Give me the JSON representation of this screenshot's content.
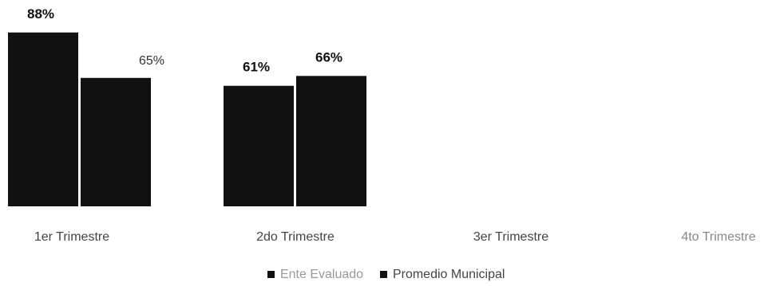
{
  "chart_data": {
    "type": "bar",
    "categories": [
      "1er Trimestre",
      "2do Trimestre",
      "3er Trimestre",
      "4to Trimestre"
    ],
    "series": [
      {
        "name": "Ente Evaluado",
        "values": [
          88,
          61,
          null,
          null
        ],
        "labels": [
          "88%",
          "61%",
          "",
          ""
        ]
      },
      {
        "name": "Promedio Municipal",
        "values": [
          65,
          66,
          null,
          null
        ],
        "labels": [
          "65%",
          "66%",
          "",
          ""
        ]
      }
    ],
    "ylim": [
      0,
      100
    ],
    "grid": false,
    "legend_position": "bottom",
    "colors": {
      "Ente Evaluado": "#111111",
      "Promedio Municipal": "#111111"
    }
  },
  "legend": {
    "items": [
      {
        "label": "Ente Evaluado"
      },
      {
        "label": "Promedio Municipal"
      }
    ]
  }
}
